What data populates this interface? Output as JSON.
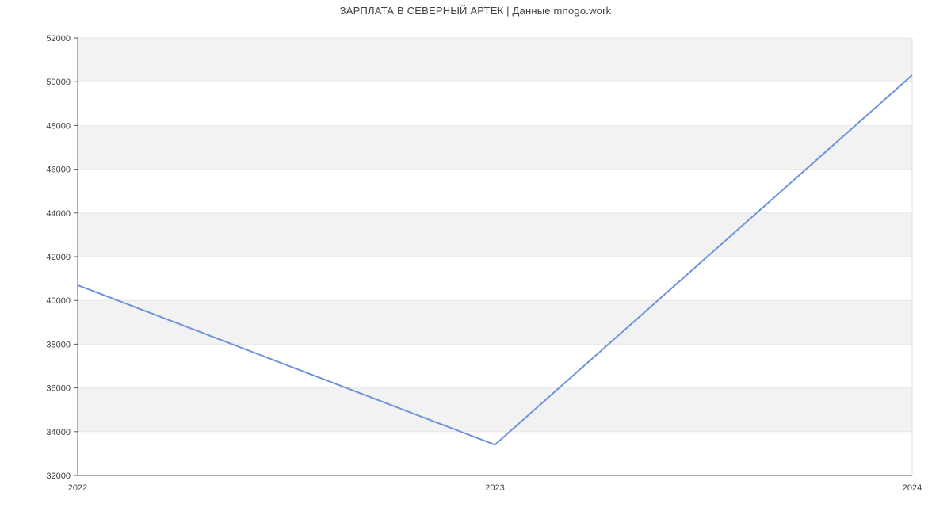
{
  "chart_data": {
    "type": "line",
    "title": "ЗАРПЛАТА В СЕВЕРНЫЙ АРТЕК | Данные mnogo.work",
    "categories": [
      "2022",
      "2023",
      "2024"
    ],
    "values": [
      40700,
      33400,
      50300
    ],
    "xlabel": "",
    "ylabel": "",
    "ylim": [
      32000,
      52000
    ],
    "ytick_step": 2000,
    "ytick_labels": [
      "32000",
      "34000",
      "36000",
      "38000",
      "40000",
      "42000",
      "44000",
      "46000",
      "48000",
      "50000",
      "52000"
    ],
    "legend": "none",
    "grid": {
      "horizontal": true,
      "vertical": true,
      "alternating_bands": true,
      "band_pattern": "gray band between top pair of ticks, alternating downward"
    },
    "colors": {
      "line": "#6e93dd",
      "band": "#f2f2f2",
      "h_gridline": "#e8e8e8",
      "v_gridline": "#e0e0e0",
      "axis": "#595959",
      "tick_text": "#404040",
      "title_text": "#404040",
      "background": "#ffffff"
    }
  }
}
